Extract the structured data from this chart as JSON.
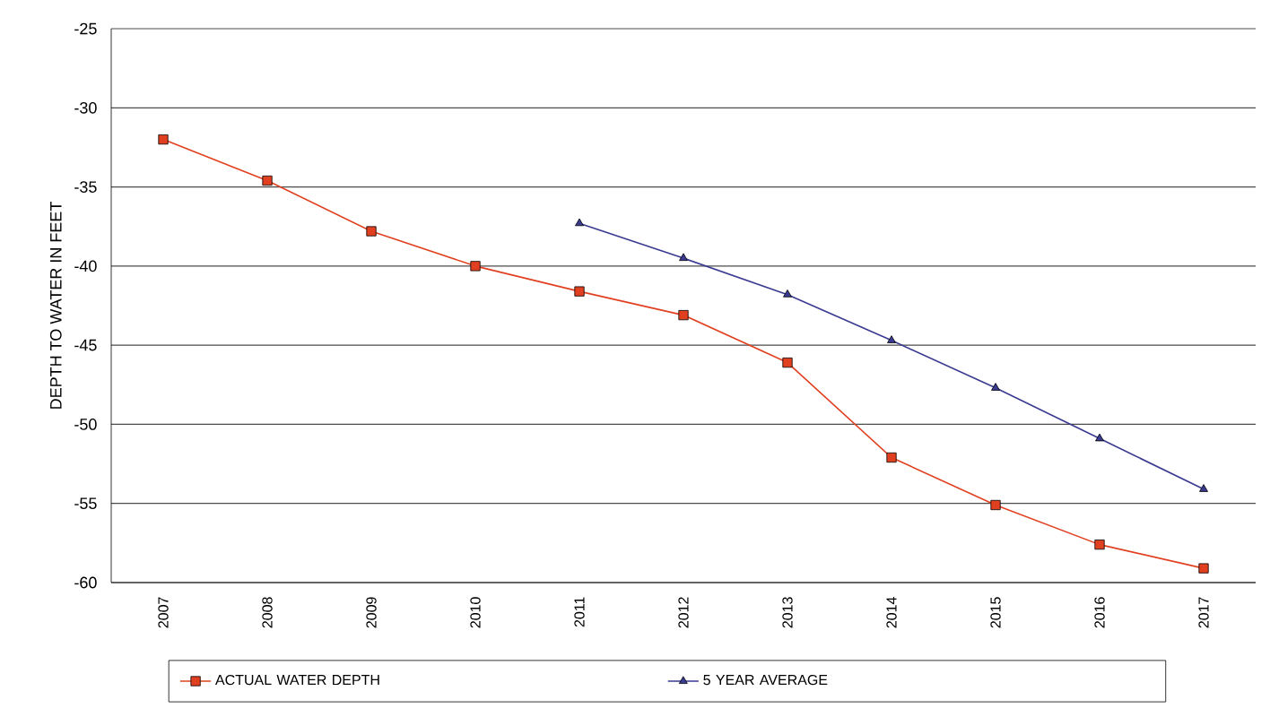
{
  "chart_data": {
    "type": "line",
    "ylabel": "DEPTH TO WATER IN FEET",
    "categories": [
      "2007",
      "2008",
      "2009",
      "2010",
      "2011",
      "2012",
      "2013",
      "2014",
      "2015",
      "2016",
      "2017"
    ],
    "series": [
      {
        "name": "ACTUAL WATER DEPTH",
        "color": "#e04020",
        "marker": "square",
        "values": [
          -32,
          -34.6,
          -37.8,
          -40,
          -41.6,
          -43.1,
          -46.1,
          -52.1,
          -55.1,
          -57.6,
          -59.1
        ]
      },
      {
        "name": "5 YEAR AVERAGE",
        "color": "#3a3a90",
        "marker": "triangle",
        "values": [
          null,
          null,
          null,
          null,
          -37.3,
          -39.5,
          -41.8,
          -44.7,
          -47.7,
          -50.9,
          -54.1
        ]
      }
    ],
    "ylim": [
      -60,
      -25
    ],
    "yticks": [
      -60,
      -55,
      -50,
      -45,
      -40,
      -35,
      -30,
      -25
    ],
    "grid": "y",
    "legend": "bottom",
    "line_style": "solid"
  }
}
